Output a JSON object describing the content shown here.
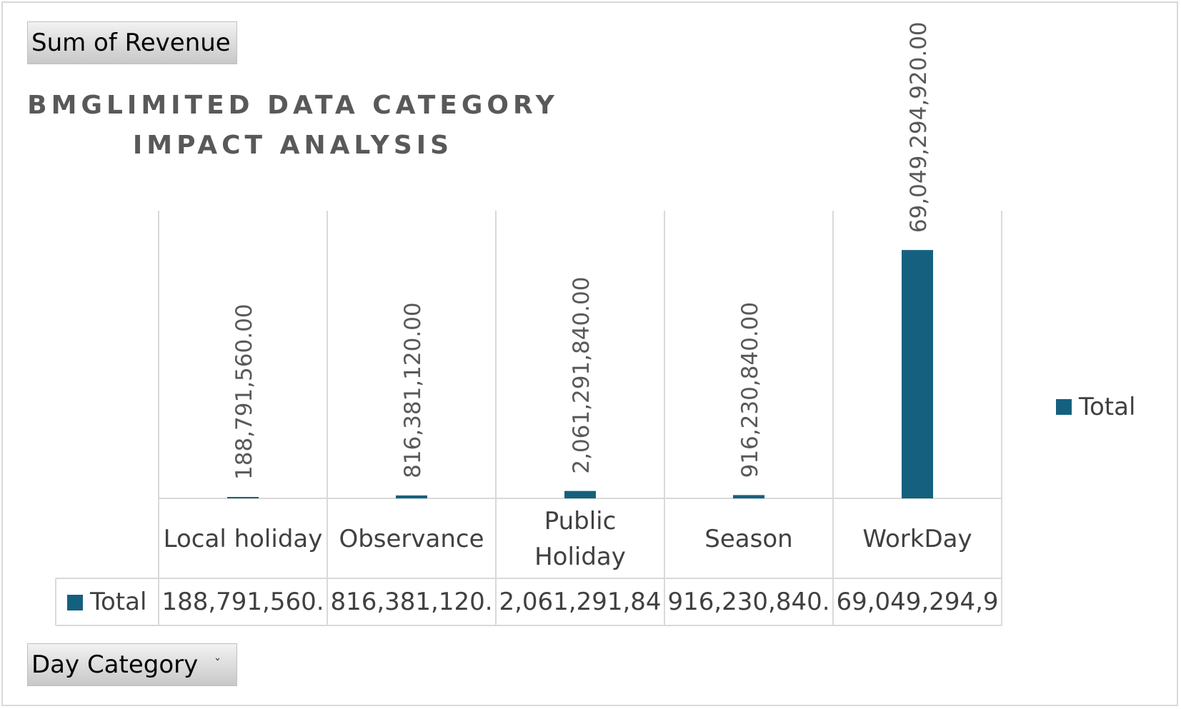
{
  "page": {
    "value_field_button": "Sum of Revenue",
    "axis_field_button": "Day Category",
    "dropdown_icon": "chevron-down-icon"
  },
  "colors": {
    "bar": "#15607f",
    "grid": "#d9d9d9",
    "label": "#595959",
    "text": "#404040"
  },
  "chart_data": {
    "type": "bar",
    "title": "BMGLIMITED DATA CATEGORY IMPACT ANALYSIS",
    "categories": [
      "Local holiday",
      "Observance",
      "Public Holiday",
      "Season",
      "WorkDay"
    ],
    "series": [
      {
        "name": "Total",
        "values": [
          188791560,
          816381120,
          2061291840,
          916230840,
          69049294920
        ],
        "data_labels": [
          "188,791,560.00",
          "816,381,120.00",
          "2,061,291,840.00",
          "916,230,840.00",
          "69,049,294,920.00"
        ],
        "table_labels": [
          "188,791,560.",
          "816,381,120.",
          "2,061,291,84",
          "916,230,840.",
          "69,049,294,9"
        ]
      }
    ],
    "ylim": [
      0,
      80000000000
    ],
    "legend_position": "right",
    "data_table": true,
    "gridlines": "vertical"
  }
}
